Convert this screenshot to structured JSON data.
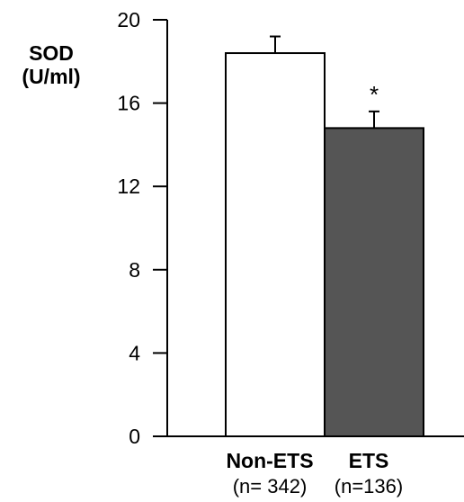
{
  "chart_data": {
    "type": "bar",
    "title": "",
    "ylabel_lines": [
      "SOD",
      "(U/ml)"
    ],
    "xlabel": "",
    "ylim": [
      0,
      20
    ],
    "yticks": [
      0,
      4,
      8,
      12,
      16,
      20
    ],
    "categories": [
      "Non-ETS",
      "ETS"
    ],
    "sample_sizes": [
      "(n= 342)",
      "(n=136)"
    ],
    "values": [
      18.4,
      14.8
    ],
    "error_upper": [
      0.8,
      0.8
    ],
    "significance": [
      "",
      "*"
    ],
    "bar_colors": [
      "#ffffff",
      "#555555"
    ],
    "grid": false,
    "legend": "none"
  }
}
